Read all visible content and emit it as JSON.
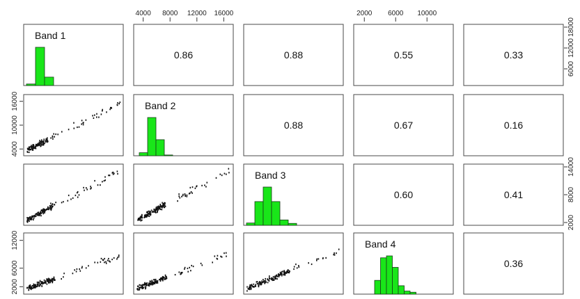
{
  "colors": {
    "histogram_fill": "#19e619",
    "histogram_stroke": "#1a3a1a",
    "points": "#111111",
    "panel_border": "#4a4a4a"
  },
  "chart_data": {
    "type": "scatter-matrix",
    "variables": [
      "Band 1",
      "Band 2",
      "Band 3",
      "Band 4",
      ""
    ],
    "band_labels": [
      "Band 1",
      "Band 2",
      "Band 3",
      "Band 4"
    ],
    "correlations": [
      {
        "row": 1,
        "col": 2,
        "value": "0.86"
      },
      {
        "row": 1,
        "col": 3,
        "value": "0.88"
      },
      {
        "row": 1,
        "col": 4,
        "value": "0.55"
      },
      {
        "row": 1,
        "col": 5,
        "value": "0.33"
      },
      {
        "row": 2,
        "col": 3,
        "value": "0.88"
      },
      {
        "row": 2,
        "col": 4,
        "value": "0.67"
      },
      {
        "row": 2,
        "col": 5,
        "value": "0.16"
      },
      {
        "row": 3,
        "col": 4,
        "value": "0.60"
      },
      {
        "row": 3,
        "col": 5,
        "value": "0.41"
      },
      {
        "row": 4,
        "col": 5,
        "value": "0.36"
      }
    ],
    "axis_ticks": {
      "top_col2": [
        "4000",
        "8000",
        "12000",
        "16000"
      ],
      "top_col4": [
        "2000",
        "6000",
        "10000"
      ],
      "left_row2": [
        "4000",
        "10000",
        "16000"
      ],
      "left_row4": [
        "2000",
        "6000",
        "12000"
      ],
      "right_row1": [
        "6000",
        "12000",
        "18000"
      ],
      "right_row3": [
        "2000",
        "8000",
        "14000"
      ]
    },
    "axis_ranges": {
      "band1": [
        2000,
        18000
      ],
      "band2": [
        3000,
        17000
      ],
      "band3": [
        2000,
        14000
      ],
      "band4": [
        1000,
        13000
      ]
    },
    "histograms": {
      "Band 1": [
        0.04,
        1.0,
        0.22,
        0.0,
        0.0,
        0.0
      ],
      "Band 2": [
        0.08,
        1.0,
        0.42,
        0.02,
        0.0,
        0.0
      ],
      "Band 3": [
        0.06,
        0.62,
        1.0,
        0.62,
        0.14,
        0.05
      ],
      "Band 4": [
        0.36,
        0.95,
        1.0,
        0.7,
        0.22,
        0.08,
        0.05
      ]
    },
    "scatter_shape": {
      "2_1": {
        "slope": 0.85,
        "cluster": 0.22
      },
      "3_1": {
        "slope": 0.9,
        "cluster": 0.28
      },
      "3_2": {
        "slope": 0.9,
        "cluster": 0.3
      },
      "4_1": {
        "slope": 0.6,
        "cluster": 0.3
      },
      "4_2": {
        "slope": 0.65,
        "cluster": 0.32
      },
      "4_3": {
        "slope": 0.7,
        "cluster": 0.45
      }
    }
  }
}
